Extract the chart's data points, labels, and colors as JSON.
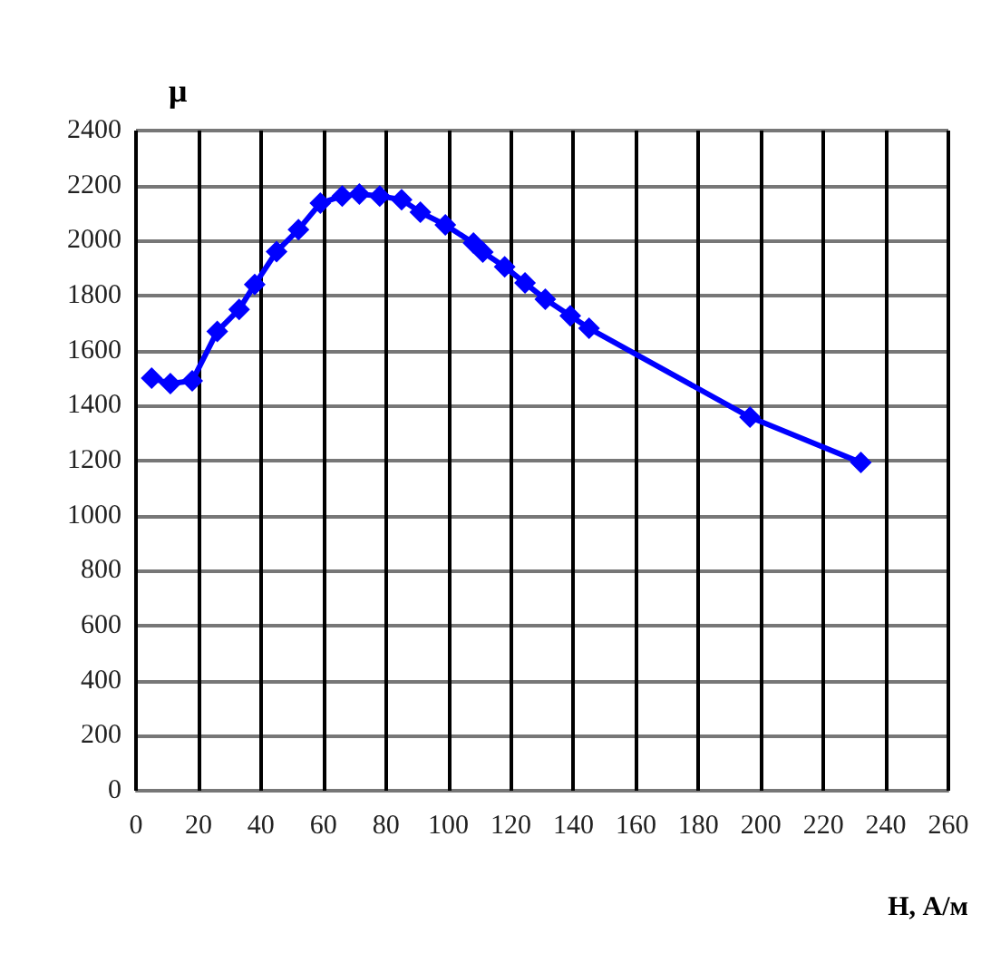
{
  "chart_data": {
    "type": "line",
    "xlabel": "H, А/м",
    "ylabel": "μ",
    "series": [
      {
        "color": "#0000ff",
        "x": [
          5,
          11,
          18,
          26,
          33,
          38,
          45,
          52,
          59,
          66,
          71.5,
          78,
          85,
          91,
          99,
          108,
          111,
          118,
          124.5,
          131,
          139,
          145,
          196.5,
          232
        ],
        "values": [
          1500,
          1480,
          1490,
          1670,
          1750,
          1840,
          1960,
          2040,
          2136,
          2162,
          2169,
          2162,
          2149,
          2103,
          2057,
          1991,
          1958,
          1905,
          1846,
          1787,
          1727,
          1681,
          1358,
          1193
        ]
      }
    ],
    "xlim": [
      0,
      260
    ],
    "xticks": [
      0,
      20,
      40,
      60,
      80,
      100,
      120,
      140,
      160,
      180,
      200,
      220,
      240,
      260
    ],
    "ylim": [
      0,
      2400
    ],
    "yticks": [
      0,
      200,
      400,
      600,
      800,
      1000,
      1200,
      1400,
      1600,
      1800,
      2000,
      2200,
      2400
    ],
    "grid": true,
    "marker": "diamond",
    "line_style": "solid"
  }
}
